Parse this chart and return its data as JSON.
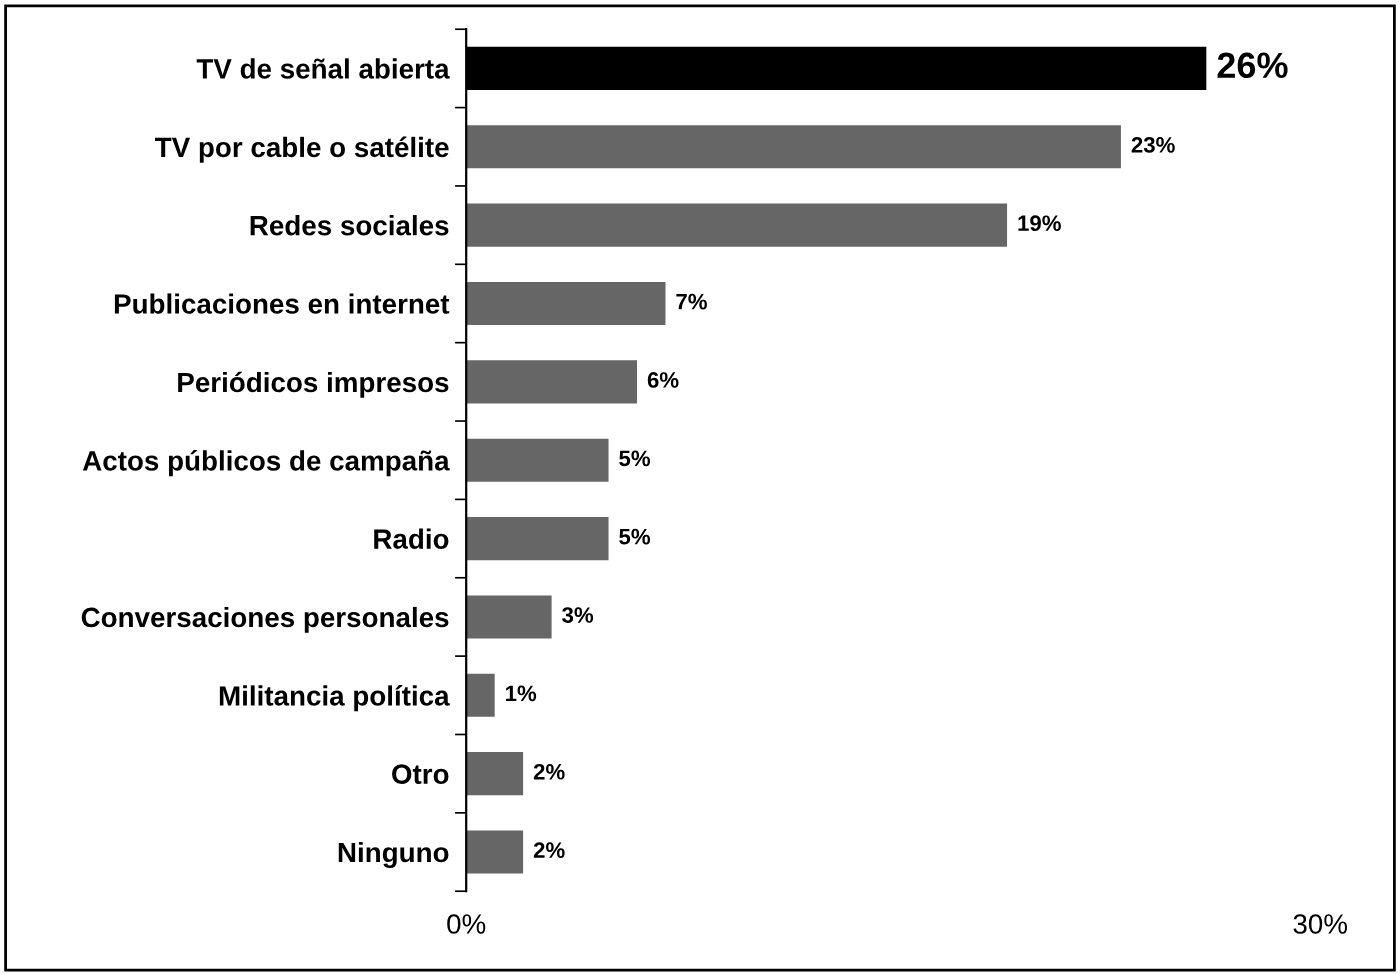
{
  "chart_data": {
    "type": "bar",
    "orientation": "horizontal",
    "categories": [
      "TV de señal abierta",
      "TV por cable o satélite",
      "Redes sociales",
      "Publicaciones en internet",
      "Periódicos impresos",
      "Actos públicos de campaña",
      "Radio",
      "Conversaciones personales",
      "Militancia política",
      "Otro",
      "Ninguno"
    ],
    "values": [
      26,
      23,
      19,
      7,
      6,
      5,
      5,
      3,
      1,
      2,
      2
    ],
    "colors": [
      "#000000",
      "#666666",
      "#666666",
      "#666666",
      "#666666",
      "#666666",
      "#666666",
      "#666666",
      "#666666",
      "#666666",
      "#666666"
    ],
    "value_labels": [
      "26%",
      "23%",
      "19%",
      "7%",
      "6%",
      "5%",
      "5%",
      "3%",
      "1%",
      "2%",
      "2%"
    ],
    "xlim": [
      0,
      30
    ],
    "xticks": [
      {
        "value": 0,
        "label": "0%"
      },
      {
        "value": 30,
        "label": "30%"
      }
    ],
    "grid": false,
    "legend": false
  }
}
